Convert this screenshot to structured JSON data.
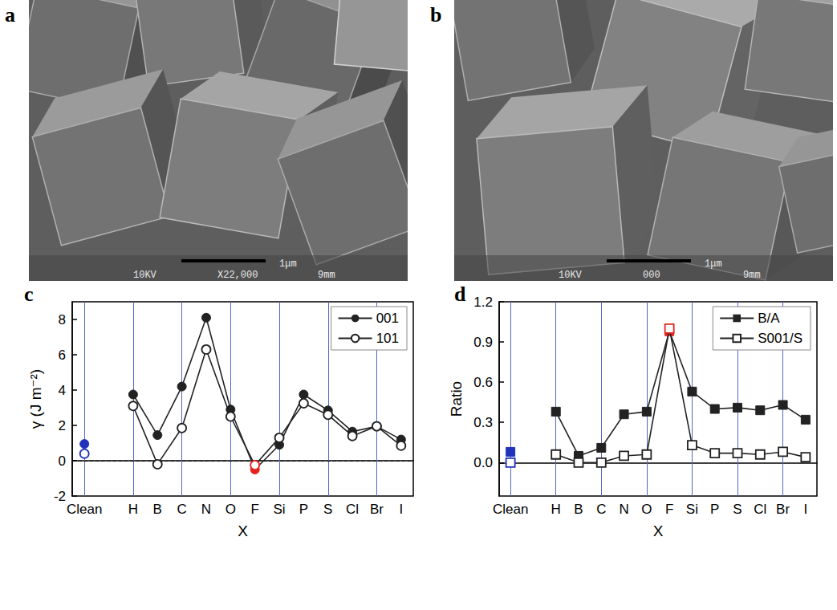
{
  "images": [
    {
      "label": "a",
      "scale_bar": "1μm",
      "info": [
        "10KV",
        "X22,000",
        "9mm"
      ]
    },
    {
      "label": "b",
      "scale_bar": "1μm",
      "info": [
        "10KV",
        "000",
        "9mm"
      ]
    }
  ],
  "chart_data": [
    {
      "label": "c",
      "type": "line",
      "x_label": "X",
      "y_label": "γ (J m⁻²)",
      "categories": [
        "Clean",
        null,
        "H",
        "B",
        "C",
        "N",
        "O",
        "F",
        "Si",
        "P",
        "S",
        "Cl",
        "Br",
        "I"
      ],
      "series": [
        {
          "name": "001",
          "color": "#222222",
          "marker": "circle",
          "colors": [
            "#2233bb",
            null,
            "#222222",
            "#222222",
            "#222222",
            "#222222",
            "#222222",
            "#e4231e",
            "#222222",
            "#222222",
            "#222222",
            "#222222",
            "#222222",
            "#222222"
          ],
          "values": [
            0.95,
            null,
            3.75,
            1.45,
            4.2,
            8.1,
            2.9,
            -0.5,
            0.9,
            3.75,
            2.85,
            1.65,
            1.95,
            1.2
          ]
        },
        {
          "name": "101",
          "color": "#222222",
          "marker": "open_circle",
          "colors": [
            "#2233bb",
            null,
            "#222222",
            "#222222",
            "#222222",
            "#222222",
            "#222222",
            "#e4231e",
            "#222222",
            "#222222",
            "#222222",
            "#222222",
            "#222222",
            "#222222"
          ],
          "values": [
            0.4,
            null,
            3.1,
            -0.2,
            1.85,
            6.3,
            2.5,
            -0.25,
            1.3,
            3.25,
            2.6,
            1.4,
            1.95,
            0.85
          ]
        }
      ],
      "hline": 0,
      "ylim": [
        -2,
        9
      ],
      "yticks": [
        -2,
        0,
        2,
        4,
        6,
        8
      ],
      "grid": true,
      "legend": "upper right"
    },
    {
      "label": "d",
      "type": "line",
      "x_label": "X",
      "y_label": "Ratio",
      "categories": [
        "Clean",
        null,
        "H",
        "B",
        "C",
        "N",
        "O",
        "F",
        "Si",
        "P",
        "S",
        "Cl",
        "Br",
        "I"
      ],
      "series": [
        {
          "name": "B/A",
          "color": "#222222",
          "marker": "square",
          "colors": [
            "#2233bb",
            null,
            "#222222",
            "#222222",
            "#222222",
            "#222222",
            "#222222",
            "#e4231e",
            "#222222",
            "#222222",
            "#222222",
            "#222222",
            "#222222",
            "#222222"
          ],
          "values": [
            0.08,
            null,
            0.38,
            0.05,
            0.11,
            0.36,
            0.38,
            0.98,
            0.53,
            0.4,
            0.41,
            0.39,
            0.43,
            0.32
          ]
        },
        {
          "name": "S001/S",
          "color": "#222222",
          "marker": "open_square",
          "colors": [
            "#2233bb",
            null,
            "#222222",
            "#222222",
            "#222222",
            "#222222",
            "#222222",
            "#e4231e",
            "#222222",
            "#222222",
            "#222222",
            "#222222",
            "#222222",
            "#222222"
          ],
          "values": [
            0.0,
            null,
            0.06,
            0.0,
            0.0,
            0.05,
            0.06,
            1.0,
            0.13,
            0.07,
            0.07,
            0.06,
            0.08,
            0.04
          ]
        }
      ],
      "ylim": [
        -0.25,
        1.2
      ],
      "yticks": [
        {
          "value": 0,
          "label": "0.0"
        },
        0.3,
        0.6,
        0.9,
        1.2
      ],
      "grid": true,
      "legend": "upper right"
    }
  ]
}
